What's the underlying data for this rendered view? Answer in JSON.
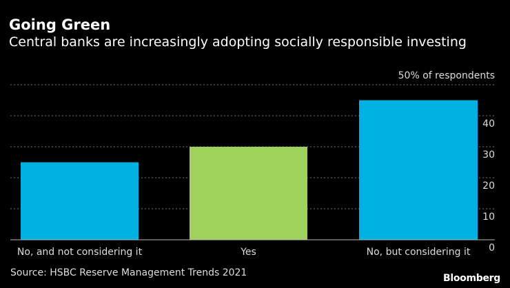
{
  "chart_data": {
    "type": "bar",
    "title": "Going Green",
    "subtitle": "Central banks are increasingly adopting socially responsible investing",
    "categories": [
      "No, and not considering it",
      "Yes",
      "No, but considering it"
    ],
    "values": [
      25,
      30,
      45
    ],
    "colors": [
      "#00b2e2",
      "#9fd15c",
      "#00b2e2"
    ],
    "ylabel": "",
    "unit_label": "% of respondents",
    "ylim": [
      0,
      50
    ],
    "yticks": [
      0,
      10,
      20,
      30,
      40,
      50
    ],
    "ytick_labels": [
      "0",
      "10",
      "20",
      "30",
      "40",
      "50% of respondents"
    ],
    "y_axis_side": "right",
    "grid": "horizontal dotted",
    "source": "Source: HSBC Reserve Management Trends 2021",
    "logo": "Bloomberg"
  }
}
